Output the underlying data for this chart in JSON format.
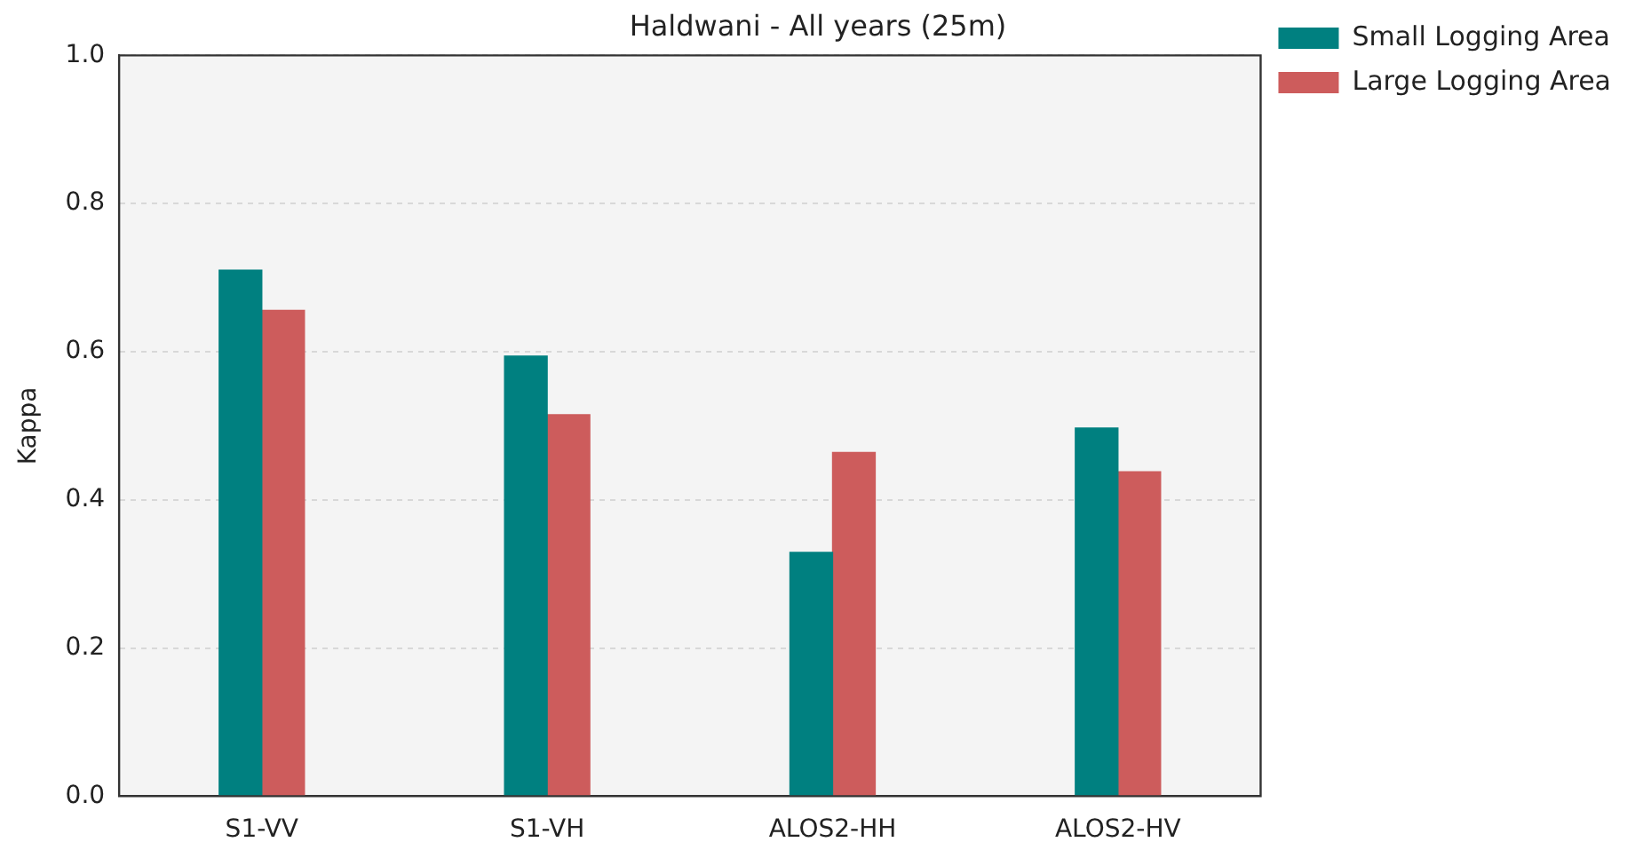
{
  "chart_data": {
    "type": "bar",
    "title": "Haldwani - All years (25m)",
    "ylabel": "Kappa",
    "categories": [
      "S1-VV",
      "S1-VH",
      "ALOS2-HH",
      "ALOS2-HV"
    ],
    "series": [
      {
        "name": "Small Logging Area",
        "color": "#008080",
        "values": [
          0.71,
          0.594,
          0.329,
          0.497
        ]
      },
      {
        "name": "Large Logging Area",
        "color": "#cd5c5c",
        "values": [
          0.656,
          0.515,
          0.464,
          0.438
        ]
      }
    ],
    "ylim": [
      0,
      1
    ],
    "yticks": [
      {
        "value": 0,
        "label": "0.0"
      },
      {
        "value": 0.2,
        "label": "0.2"
      },
      {
        "value": 0.4,
        "label": "0.4"
      },
      {
        "value": 0.6,
        "label": "0.6"
      },
      {
        "value": 0.8,
        "label": "0.8"
      },
      {
        "value": 1,
        "label": "1.0"
      }
    ],
    "grid": "y",
    "legend": "top right"
  }
}
